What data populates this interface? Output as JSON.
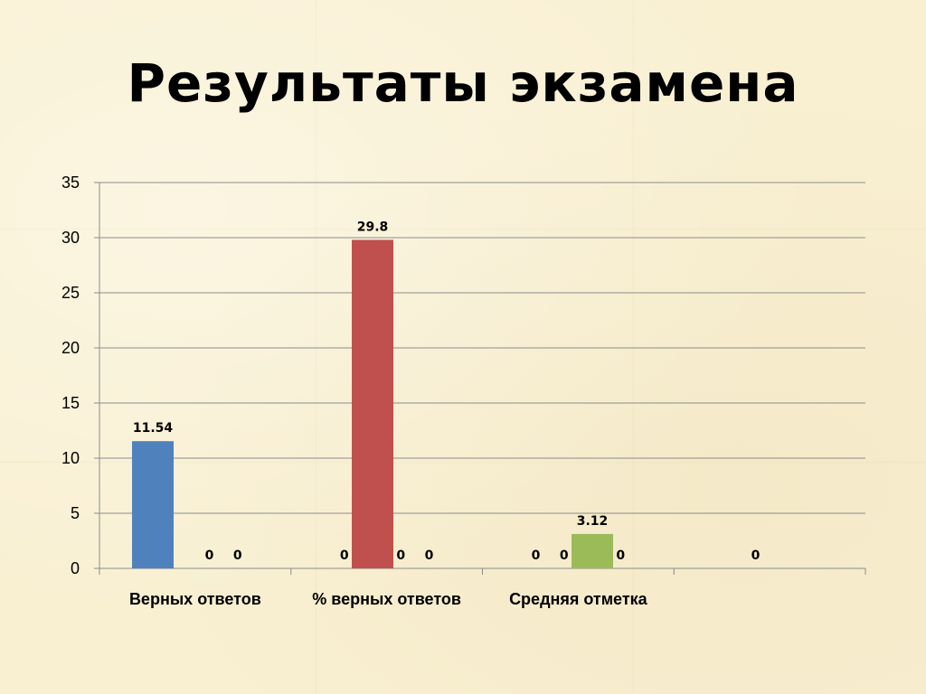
{
  "slide": {
    "title": "Результаты экзамена"
  },
  "chart_data": {
    "type": "bar",
    "categories": [
      "Верных ответов",
      "% верных ответов",
      "Средняя отметка",
      ""
    ],
    "series": [
      {
        "values": [
          11.54,
          0,
          0,
          0
        ],
        "color": "#4f81bd"
      },
      {
        "values": [
          0,
          29.8,
          0,
          0
        ],
        "color": "#c0504d"
      },
      {
        "values": [
          0,
          0,
          3.12,
          0
        ],
        "color": "#9bbb59"
      },
      {
        "values": [
          0,
          0,
          0,
          0
        ],
        "color": "#8064a2"
      }
    ],
    "data_labels": [
      [
        "11.54",
        "0",
        "0",
        ""
      ],
      [
        "",
        "29.8",
        "0",
        "0"
      ],
      [
        "0",
        "0",
        "3.12",
        ""
      ],
      [
        "0",
        "0",
        "0",
        ""
      ]
    ],
    "ylim": [
      0,
      35
    ],
    "yticks": [
      0,
      5,
      10,
      15,
      20,
      25,
      30,
      35
    ],
    "grid": true,
    "legend": "none"
  }
}
